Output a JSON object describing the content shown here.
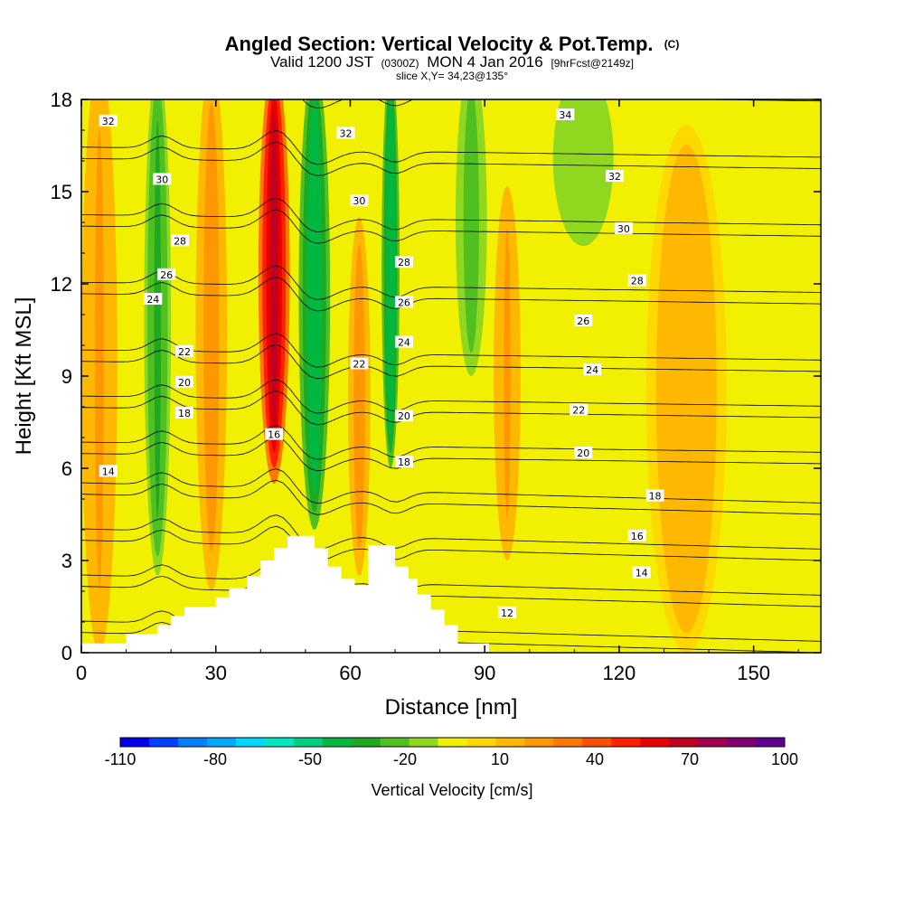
{
  "chart_data": {
    "type": "heatmap",
    "title": "Angled Section: Vertical Velocity & Pot.Temp.",
    "title_unit": "(C)",
    "subtitle": {
      "valid_prefix": "Valid 1200 JST",
      "utc": "(0300Z)",
      "date": "MON 4 Jan 2016",
      "forecast": "[9hrFcst@2149z]"
    },
    "slice_label": "slice X,Y= 34,23@135°",
    "xlabel": "Distance [nm]",
    "ylabel": "Height [Kft MSL]",
    "xlim": [
      0,
      165
    ],
    "ylim": [
      0,
      18
    ],
    "x_ticks": [
      0,
      30,
      60,
      90,
      120,
      150
    ],
    "y_ticks": [
      0,
      3,
      6,
      9,
      12,
      15,
      18
    ],
    "legend": {
      "label": "Vertical Velocity [cm/s]",
      "placement": "bottom",
      "ticks": [
        -110,
        -80,
        -50,
        -20,
        10,
        40,
        70,
        100
      ],
      "colors": [
        "#0000f0",
        "#0040ff",
        "#0080ff",
        "#00a8ff",
        "#00d8ff",
        "#00e8c0",
        "#00d080",
        "#00b840",
        "#20a820",
        "#50c020",
        "#90d820",
        "#f0f000",
        "#ffd800",
        "#ffb800",
        "#ff9800",
        "#ff7800",
        "#ff5000",
        "#ff2000",
        "#e80000",
        "#c00020",
        "#a00050",
        "#800070",
        "#600090"
      ]
    },
    "terrain_profile": {
      "distance": [
        0,
        10,
        10,
        17,
        17,
        20,
        20,
        23,
        23,
        30,
        30,
        33,
        33,
        37,
        37,
        40,
        40,
        43,
        43,
        46,
        46,
        52,
        52,
        55,
        55,
        58,
        58,
        61,
        61,
        64,
        64,
        70,
        70,
        73,
        73,
        75,
        75,
        78,
        78,
        81,
        81,
        84,
        84,
        91
      ],
      "height": [
        0.3,
        0.3,
        0.6,
        0.6,
        0.9,
        0.9,
        1.2,
        1.2,
        1.5,
        1.5,
        1.8,
        1.8,
        2.1,
        2.1,
        2.5,
        2.5,
        3.0,
        3.0,
        3.4,
        3.4,
        3.8,
        3.8,
        3.4,
        3.4,
        2.8,
        2.8,
        2.4,
        2.4,
        2.2,
        2.2,
        3.5,
        3.5,
        2.8,
        2.8,
        2.4,
        2.4,
        1.9,
        1.9,
        1.4,
        1.4,
        0.9,
        0.9,
        0.3,
        0.3
      ]
    },
    "vertical_velocity_bands": [
      {
        "center": 4,
        "width": 8,
        "value": 20,
        "bottom": 0,
        "top": 18
      },
      {
        "center": 17,
        "width": 6,
        "value": -30,
        "bottom": 2.5,
        "top": 18
      },
      {
        "center": 29,
        "width": 7,
        "value": 22,
        "bottom": 2,
        "top": 18
      },
      {
        "center": 43,
        "width": 7,
        "value": 70,
        "bottom": 5.5,
        "top": 18
      },
      {
        "center": 52,
        "width": 7,
        "value": -45,
        "bottom": 4,
        "top": 18
      },
      {
        "center": 62,
        "width": 5,
        "value": 22,
        "bottom": 2.5,
        "top": 13
      },
      {
        "center": 69,
        "width": 4,
        "value": -45,
        "bottom": 6,
        "top": 18
      },
      {
        "center": 87,
        "width": 7,
        "value": -25,
        "bottom": 9,
        "top": 18
      },
      {
        "center": 95,
        "width": 6,
        "value": 18,
        "bottom": 3,
        "top": 14
      },
      {
        "center": 112,
        "width": 18,
        "value": -15,
        "bottom": 13,
        "top": 18
      },
      {
        "center": 135,
        "width": 18,
        "value": 14,
        "bottom": 0,
        "top": 16
      }
    ],
    "potential_temperature_isotherms": [
      12,
      14,
      16,
      18,
      20,
      22,
      24,
      26,
      28,
      30,
      32,
      34
    ],
    "contour_labels": [
      {
        "text": "32",
        "x": 6,
        "y": 17.3
      },
      {
        "text": "30",
        "x": 18,
        "y": 15.4
      },
      {
        "text": "28",
        "x": 22,
        "y": 13.4
      },
      {
        "text": "26",
        "x": 19,
        "y": 12.3
      },
      {
        "text": "24",
        "x": 16,
        "y": 11.5
      },
      {
        "text": "22",
        "x": 23,
        "y": 9.8
      },
      {
        "text": "20",
        "x": 23,
        "y": 8.8
      },
      {
        "text": "18",
        "x": 23,
        "y": 7.8
      },
      {
        "text": "16",
        "x": 43,
        "y": 7.1
      },
      {
        "text": "14",
        "x": 6,
        "y": 5.9
      },
      {
        "text": "32",
        "x": 59,
        "y": 16.9
      },
      {
        "text": "30",
        "x": 62,
        "y": 14.7
      },
      {
        "text": "28",
        "x": 72,
        "y": 12.7
      },
      {
        "text": "26",
        "x": 72,
        "y": 11.4
      },
      {
        "text": "24",
        "x": 72,
        "y": 10.1
      },
      {
        "text": "22",
        "x": 62,
        "y": 9.4
      },
      {
        "text": "20",
        "x": 72,
        "y": 7.7
      },
      {
        "text": "18",
        "x": 72,
        "y": 6.2
      },
      {
        "text": "34",
        "x": 108,
        "y": 17.5
      },
      {
        "text": "32",
        "x": 119,
        "y": 15.5
      },
      {
        "text": "30",
        "x": 121,
        "y": 13.8
      },
      {
        "text": "28",
        "x": 124,
        "y": 12.1
      },
      {
        "text": "26",
        "x": 112,
        "y": 10.8
      },
      {
        "text": "24",
        "x": 114,
        "y": 9.2
      },
      {
        "text": "22",
        "x": 111,
        "y": 7.9
      },
      {
        "text": "20",
        "x": 112,
        "y": 6.5
      },
      {
        "text": "18",
        "x": 128,
        "y": 5.1
      },
      {
        "text": "16",
        "x": 124,
        "y": 3.8
      },
      {
        "text": "14",
        "x": 125,
        "y": 2.6
      },
      {
        "text": "12",
        "x": 95,
        "y": 1.3
      }
    ]
  }
}
